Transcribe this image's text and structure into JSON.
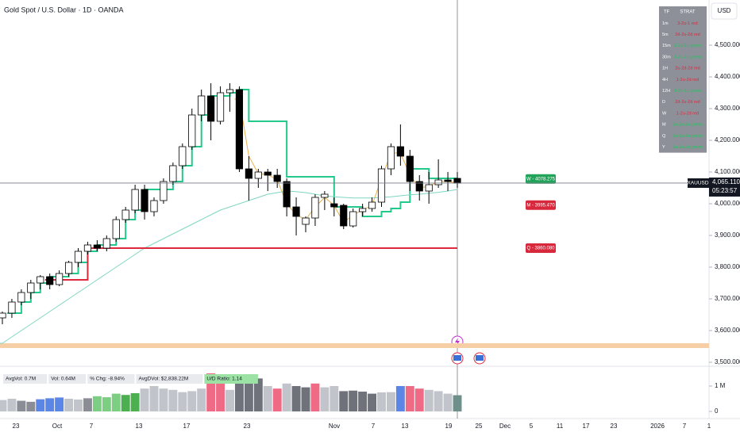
{
  "header": {
    "title": "Gold Spot / U.S. Dollar · 1D · OANDA",
    "currency": "USD"
  },
  "chart_data": {
    "type": "candlestick",
    "ohlc": [
      [
        3640,
        3660,
        3620,
        3655
      ],
      [
        3655,
        3700,
        3640,
        3690
      ],
      [
        3690,
        3730,
        3680,
        3720
      ],
      [
        3720,
        3760,
        3700,
        3750
      ],
      [
        3750,
        3775,
        3730,
        3770
      ],
      [
        3770,
        3780,
        3730,
        3745
      ],
      [
        3745,
        3790,
        3740,
        3780
      ],
      [
        3780,
        3820,
        3770,
        3815
      ],
      [
        3815,
        3860,
        3800,
        3850
      ],
      [
        3850,
        3880,
        3840,
        3870
      ],
      [
        3870,
        3885,
        3850,
        3860
      ],
      [
        3860,
        3900,
        3850,
        3890
      ],
      [
        3890,
        3960,
        3880,
        3950
      ],
      [
        3950,
        3990,
        3940,
        3980
      ],
      [
        3980,
        4060,
        3970,
        4045
      ],
      [
        4045,
        4060,
        3950,
        3975
      ],
      [
        3975,
        4020,
        3960,
        4010
      ],
      [
        4010,
        4080,
        4000,
        4070
      ],
      [
        4070,
        4130,
        4060,
        4120
      ],
      [
        4120,
        4190,
        4110,
        4180
      ],
      [
        4180,
        4300,
        4170,
        4280
      ],
      [
        4280,
        4360,
        4260,
        4340
      ],
      [
        4340,
        4380,
        4200,
        4260
      ],
      [
        4260,
        4370,
        4250,
        4350
      ],
      [
        4350,
        4380,
        4290,
        4360
      ],
      [
        4360,
        4370,
        4100,
        4110
      ],
      [
        4110,
        4150,
        4010,
        4080
      ],
      [
        4080,
        4110,
        4050,
        4100
      ],
      [
        4100,
        4110,
        4040,
        4090
      ],
      [
        4090,
        4110,
        4050,
        4070
      ],
      [
        4070,
        4080,
        3960,
        3990
      ],
      [
        3990,
        4020,
        3900,
        3960
      ],
      [
        3935,
        3960,
        3910,
        3955
      ],
      [
        3955,
        4030,
        3930,
        4020
      ],
      [
        4020,
        4040,
        3980,
        4030
      ],
      [
        4000,
        4020,
        3960,
        3990
      ],
      [
        3995,
        4000,
        3920,
        3930
      ],
      [
        3930,
        3985,
        3925,
        3975
      ],
      [
        3975,
        4000,
        3960,
        3985
      ],
      [
        3985,
        4020,
        3975,
        4005
      ],
      [
        4005,
        4120,
        3990,
        4110
      ],
      [
        4110,
        4190,
        4090,
        4180
      ],
      [
        4180,
        4250,
        4120,
        4150
      ],
      [
        4150,
        4170,
        4040,
        4070
      ],
      [
        4070,
        4090,
        4010,
        4040
      ],
      [
        4040,
        4100,
        4000,
        4060
      ],
      [
        4060,
        4140,
        4050,
        4075
      ],
      [
        4075,
        4100,
        4040,
        4070
      ],
      [
        4080,
        4100,
        4050,
        4065
      ]
    ],
    "up_color": "#ffffff",
    "down_color": "#000000",
    "overlays": [
      {
        "color": "#22c98a",
        "style": "step",
        "width": 2,
        "values": [
          null,
          3655,
          3690,
          3720,
          3750,
          3770,
          3770,
          3780,
          3815,
          3850,
          3870,
          3870,
          3890,
          3950,
          3980,
          4045,
          4045,
          4045,
          4070,
          4120,
          4180,
          4280,
          4340,
          4340,
          4350,
          4360,
          4260,
          4260,
          4260,
          4260,
          4085,
          4085,
          4085,
          4085,
          4085,
          3990,
          3990,
          3990,
          3960,
          3960,
          3975,
          3985,
          4005,
          4110,
          4110,
          4080,
          4080,
          4080,
          4080
        ]
      },
      {
        "color": "#e8b04a",
        "style": "line",
        "width": 1,
        "values": [
          null,
          null,
          null,
          null,
          null,
          null,
          null,
          null,
          null,
          null,
          null,
          null,
          null,
          null,
          null,
          null,
          null,
          null,
          null,
          null,
          null,
          null,
          null,
          null,
          null,
          4330,
          4150,
          4095,
          4092,
          4075,
          4000,
          3965,
          3950,
          3990,
          4020,
          3995,
          3940,
          3965,
          3980,
          3995,
          4080,
          4160,
          4160,
          4090,
          4050,
          4055,
          4070,
          4070,
          4066
        ]
      },
      {
        "color": "#7fd6c2",
        "style": "line",
        "width": 1,
        "values": [
          3560,
          3580,
          3600,
          3620,
          3640,
          3660,
          3680,
          3700,
          3720,
          3740,
          3760,
          3780,
          3800,
          3820,
          3840,
          3860,
          3875,
          3890,
          3905,
          3920,
          3935,
          3950,
          3965,
          3980,
          3990,
          4000,
          4010,
          4020,
          4030,
          4035,
          4040,
          4038,
          4035,
          4030,
          4025,
          4022,
          4020,
          4018,
          4018,
          4018,
          4020,
          4022,
          4025,
          4028,
          4030,
          4033,
          4036,
          4040,
          4045
        ]
      },
      {
        "color": "#e0283c",
        "style": "step",
        "width": 2,
        "values": [
          null,
          null,
          null,
          null,
          null,
          3760,
          3760,
          3760,
          3760,
          3860,
          3860,
          3860,
          3860,
          3860,
          3860,
          3860,
          3860,
          3860,
          3860,
          3860,
          3860,
          3860,
          3860,
          3860,
          3860,
          3860,
          3860,
          3860,
          3860,
          3860,
          3860,
          3860,
          3860,
          3860,
          3860,
          3860,
          3860,
          3860,
          3860,
          3860,
          3860,
          3860,
          3860,
          3860,
          3860,
          3860,
          3860,
          3860,
          3860
        ]
      }
    ],
    "zone": [
      3545,
      3560
    ],
    "zone_color": "#f6cfa6",
    "ylim": [
      3487.5,
      4642.5
    ],
    "yticks": [
      {
        "value": 4500,
        "label": "4,500.000"
      },
      {
        "value": 4400,
        "label": "4,400.000"
      },
      {
        "value": 4300,
        "label": "4,300.000"
      },
      {
        "value": 4200,
        "label": "4,200.000"
      },
      {
        "value": 4100,
        "label": "4,100.000"
      },
      {
        "value": 4000,
        "label": "4,000.000"
      },
      {
        "value": 3900,
        "label": "3,900.000"
      },
      {
        "value": 3800,
        "label": "3,800.000"
      },
      {
        "value": 3700,
        "label": "3,700.000"
      },
      {
        "value": 3600,
        "label": "3,600.000"
      },
      {
        "value": 3500,
        "label": "3,500.000"
      }
    ],
    "levels": [
      {
        "label": "W - 4078.275",
        "value": 4078.275,
        "color": "#22a35a"
      },
      {
        "label": "M - 3995.470",
        "value": 3995.47,
        "color": "#d8283c"
      },
      {
        "label": "Q - 3860.080",
        "value": 3860.08,
        "color": "#d8283c"
      }
    ],
    "last_price": {
      "symbol": "XAUUSD",
      "value": 4065.11,
      "label": "4,065.110",
      "countdown": "05:23:57"
    },
    "volume": {
      "values": [
        450000,
        500000,
        420000,
        380000,
        480000,
        520000,
        550000,
        500000,
        470000,
        520000,
        600000,
        560000,
        700000,
        650000,
        720000,
        900000,
        1000000,
        900000,
        850000,
        760000,
        800000,
        900000,
        1500000,
        1300000,
        850000,
        1200000,
        1100000,
        1300000,
        1000000,
        900000,
        1100000,
        1000000,
        950000,
        1100000,
        950000,
        1000000,
        800000,
        820000,
        780000,
        700000,
        750000,
        760000,
        1000000,
        1000000,
        900000,
        850000,
        800000,
        700000,
        640000
      ],
      "colors": [
        "#c2c4cb",
        "#c2c4cb",
        "#8a8d96",
        "#8a8d96",
        "#5b86e5",
        "#5b86e5",
        "#5b86e5",
        "#c2c4cb",
        "#c2c4cb",
        "#8a8d96",
        "#7ccf82",
        "#7ccf82",
        "#7ccf82",
        "#4caf50",
        "#4caf50",
        "#c2c4cb",
        "#c2c4cb",
        "#c2c4cb",
        "#c2c4cb",
        "#c2c4cb",
        "#c2c4cb",
        "#c2c4cb",
        "#ef6a84",
        "#ef6a84",
        "#c2c4cb",
        "#6f727a",
        "#6f727a",
        "#6f727a",
        "#c2c4cb",
        "#ef6a84",
        "#c2c4cb",
        "#6f727a",
        "#6f727a",
        "#ef6a84",
        "#c2c4cb",
        "#c2c4cb",
        "#6f727a",
        "#6f727a",
        "#6f727a",
        "#6f727a",
        "#c2c4cb",
        "#c2c4cb",
        "#5b86e5",
        "#ef6a84",
        "#ef6a84",
        "#c2c4cb",
        "#c2c4cb",
        "#c2c4cb",
        "#6f8f8a"
      ],
      "ylim": [
        -280000,
        1780000
      ],
      "yticks": [
        {
          "value": 1000000,
          "label": "1 M"
        },
        0
      ]
    },
    "volume_stats": [
      "AvgVol: 0.7M",
      "Vol: 0.64M",
      "% Chg: -8.94%",
      "AvgDVol: $2,838.22M",
      "U/D Ratio: 1.14"
    ],
    "x_labels": [
      "23",
      "Oct",
      "7",
      "13",
      "17",
      "23",
      "Nov",
      "7",
      "13",
      "19",
      "25",
      "Dec",
      "5",
      "11",
      "17",
      "23",
      "2026",
      "7",
      "1"
    ]
  },
  "strat_table": {
    "header": [
      "TF",
      "STRAT"
    ],
    "rows": [
      [
        "1m",
        "3-2u-1 red",
        "#e0283c"
      ],
      [
        "5m",
        "2d-2u-2d red",
        "#e0283c"
      ],
      [
        "15m",
        "1-2u-2u green",
        "#22c55e"
      ],
      [
        "30m",
        "1-2u-2u green",
        "#22c55e"
      ],
      [
        "1H",
        "2u-2d-2d red",
        "#e0283c"
      ],
      [
        "4H",
        "1-2u-2d red",
        "#e0283c"
      ],
      [
        "12H",
        "1-2u-2u green",
        "#22c55e"
      ],
      [
        "D",
        "2d-2u-2d red",
        "#e0283c"
      ],
      [
        "W",
        "1-2u-2d red",
        "#e0283c"
      ],
      [
        "M",
        "2u-2u-2u green",
        "#22c55e"
      ],
      [
        "Q",
        "2u-2u-2u green",
        "#22c55e"
      ],
      [
        "Y",
        "2u-2u-2u green",
        "#22c55e"
      ]
    ]
  }
}
